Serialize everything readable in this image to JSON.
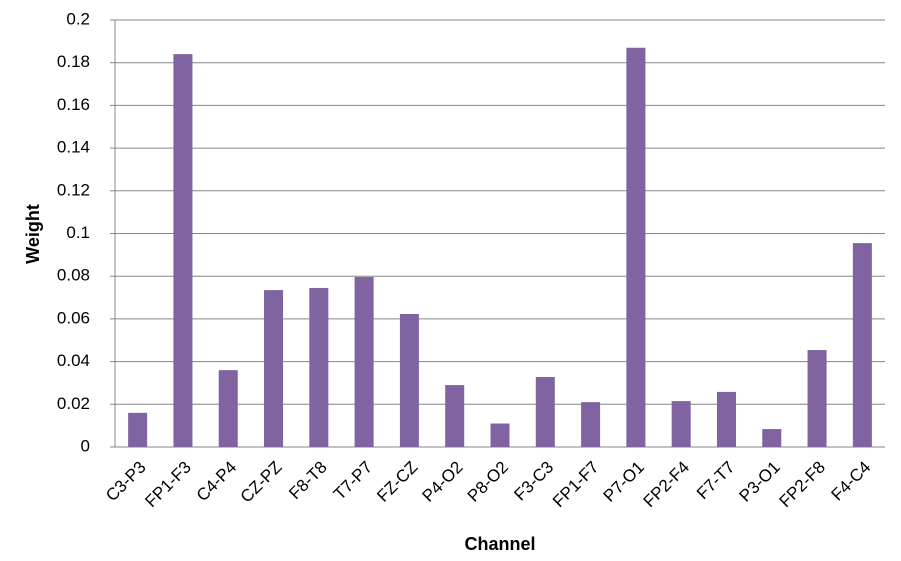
{
  "chart_data": {
    "type": "bar",
    "x_label": "Channel",
    "y_label": "Weight",
    "categories": [
      "C3-P3",
      "FP1-F3",
      "C4-P4",
      "CZ-PZ",
      "F8-T8",
      "T7-P7",
      "FZ-CZ",
      "P4-O2",
      "P8-O2",
      "F3-C3",
      "FP1-F7",
      "P7-O1",
      "FP2-F4",
      "F7-T7",
      "P3-O1",
      "FP2-F8",
      "F4-C4"
    ],
    "values": [
      0.016,
      0.184,
      0.036,
      0.0735,
      0.0745,
      0.0796,
      0.0623,
      0.029,
      0.011,
      0.0328,
      0.021,
      0.187,
      0.0215,
      0.0258,
      0.0084,
      0.0454,
      0.0955
    ],
    "color": "#8064a2",
    "ylim": [
      0,
      0.2
    ],
    "yticks": [
      0,
      0.02,
      0.04,
      0.06,
      0.08,
      0.1,
      0.12,
      0.14,
      0.16,
      0.18,
      0.2
    ],
    "grid": true
  }
}
